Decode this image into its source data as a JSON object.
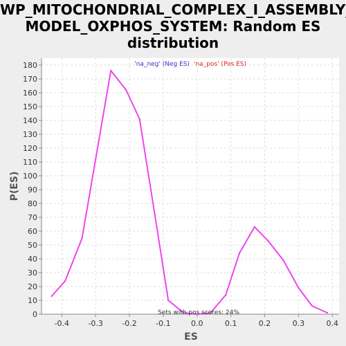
{
  "chart_data": {
    "type": "line",
    "title_lines": [
      "WP_MITOCHONDRIAL_COMPLEX_I_ASSEMBLY_",
      "MODEL_OXPHOS_SYSTEM: Random ES",
      "distribution"
    ],
    "xlabel": "ES",
    "ylabel": "P(ES)",
    "xlim": [
      -0.46,
      0.42
    ],
    "ylim": [
      0,
      185
    ],
    "x_ticks": [
      -0.4,
      -0.3,
      -0.2,
      -0.1,
      0.0,
      0.1,
      0.2,
      0.3,
      0.4
    ],
    "x_tick_labels": [
      "-0.4",
      "-0.3",
      "-0.2",
      "-0.1",
      "0.0",
      "0.1",
      "0.2",
      "0.3",
      "0.4"
    ],
    "y_ticks": [
      0,
      10,
      20,
      30,
      40,
      50,
      60,
      70,
      80,
      90,
      100,
      110,
      120,
      130,
      140,
      150,
      160,
      170,
      180
    ],
    "y_tick_labels": [
      "0",
      "10",
      "20",
      "30",
      "40",
      "50",
      "60",
      "70",
      "80",
      "90",
      "100",
      "110",
      "120",
      "130",
      "140",
      "150",
      "160",
      "170",
      "180"
    ],
    "grid": true,
    "legend": {
      "placement": "top-center",
      "entries": [
        {
          "text": "'na_neg' (Neg ES)",
          "color": "#3333cc"
        },
        {
          "text": "'na_pos' (Pos ES)",
          "color": "#dd2222"
        }
      ]
    },
    "annotation": "Sets with pos scores: 24%",
    "series": [
      {
        "color": "#ee44ee",
        "x": [
          -0.43,
          -0.39,
          -0.34,
          -0.3,
          -0.255,
          -0.21,
          -0.17,
          -0.125,
          -0.085,
          -0.04,
          0.0,
          0.04,
          0.085,
          0.125,
          0.17,
          0.21,
          0.255,
          0.3,
          0.34,
          0.385
        ],
        "y": [
          13,
          24,
          55,
          112,
          176,
          162,
          141,
          72,
          10,
          1,
          0,
          1,
          14,
          44,
          63,
          53,
          39,
          19,
          6,
          1
        ]
      }
    ]
  }
}
